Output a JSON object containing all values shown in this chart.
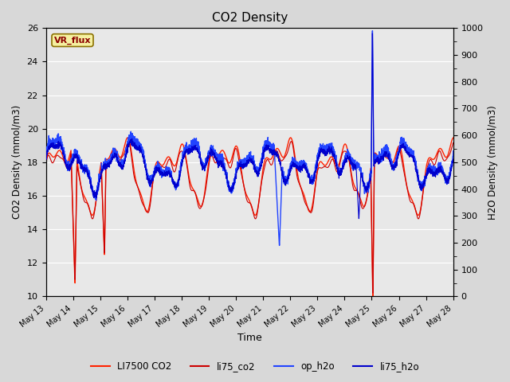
{
  "title": "CO2 Density",
  "xlabel": "Time",
  "ylabel_left": "CO2 Density (mmol/m3)",
  "ylabel_right": "H2O Density (mmol/m3)",
  "ylim_left": [
    10,
    26
  ],
  "ylim_right": [
    0,
    1000
  ],
  "yticks_left": [
    10,
    12,
    14,
    16,
    18,
    20,
    22,
    24,
    26
  ],
  "yticks_right": [
    0,
    100,
    200,
    300,
    400,
    500,
    600,
    700,
    800,
    900,
    1000
  ],
  "xtick_labels": [
    "May 13",
    "May 14",
    "May 15",
    "May 16",
    "May 17",
    "May 18",
    "May 19",
    "May 20",
    "May 21",
    "May 22",
    "May 23",
    "May 24",
    "May 25",
    "May 26",
    "May 27",
    "May 28"
  ],
  "bg_color": "#e8e8e8",
  "grid_color": "#ffffff",
  "vr_flux_label": "VR_flux",
  "vr_flux_bg": "#f5f0a0",
  "vr_flux_border": "#8b7000",
  "co2_color1": "#ff2200",
  "co2_color2": "#cc0000",
  "h2o_color1": "#2244ff",
  "h2o_color2": "#0000cc",
  "legend_entries": [
    "LI7500 CO2",
    "li75_co2",
    "op_h2o",
    "li75_h2o"
  ]
}
